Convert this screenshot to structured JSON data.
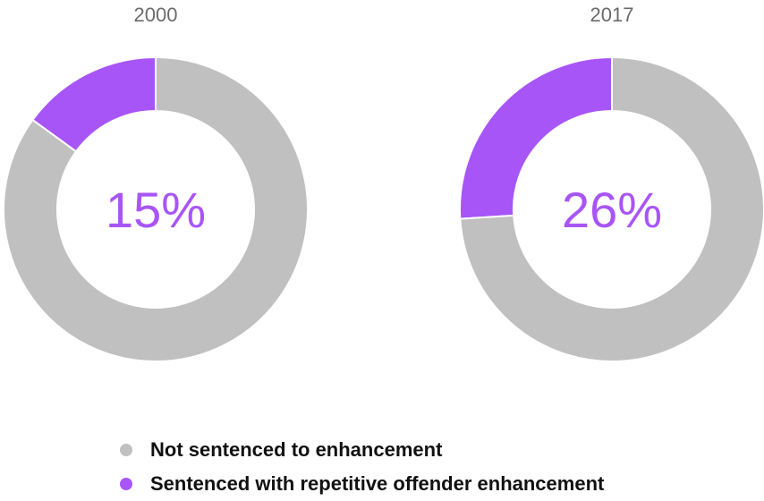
{
  "chart_data": {
    "type": "donut",
    "legend_position": "bottom",
    "colors": {
      "not_sentenced": "#c0c0c0",
      "sentenced": "#a855f7"
    },
    "legend": [
      {
        "label": "Not sentenced to enhancement",
        "color": "#c0c0c0"
      },
      {
        "label": "Sentenced with repetitive offender enhancement",
        "color": "#a855f7"
      }
    ],
    "charts": [
      {
        "title": "2000",
        "center_label": "15%",
        "slices": [
          {
            "name": "Sentenced with repetitive offender enhancement",
            "value": 15
          },
          {
            "name": "Not sentenced to enhancement",
            "value": 85
          }
        ]
      },
      {
        "title": "2017",
        "center_label": "26%",
        "slices": [
          {
            "name": "Sentenced with repetitive offender enhancement",
            "value": 26
          },
          {
            "name": "Not sentenced to enhancement",
            "value": 74
          }
        ]
      }
    ]
  }
}
